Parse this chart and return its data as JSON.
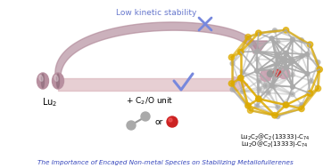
{
  "title_top": "Low kinetic stability",
  "title_bottom": "The Importance of Encaged Non-metal Species on Stabilizing Metallofullerenes",
  "lu2_label": "Lu$_2$",
  "c2o_label": "+ C$_2$/O unit",
  "formula1": "Lu$_2$C$_2$@C$_2$(13333)-C$_{74}$",
  "formula2": "Lu$_2$O@C$_2$(13333)-C$_{74}$",
  "or_text": "or",
  "arc_color": "#b08898",
  "arrow_color": "#d4a8b0",
  "cross_color": "#7788dd",
  "check_color": "#7788dd",
  "title_color": "#6677cc",
  "bottom_color": "#3344bb",
  "lu_color": "#b890a0",
  "lu_dark": "#8a6878",
  "c_color": "#aaaaaa",
  "o_color": "#cc2222",
  "cage_gray": "#aaaaaa",
  "cage_yellow": "#ddaa00",
  "cage_interior_lu": "#c8a0b0",
  "cage_interior_c": "#999999",
  "cage_interior_o": "#cc3333",
  "bg_color": "#ffffff"
}
